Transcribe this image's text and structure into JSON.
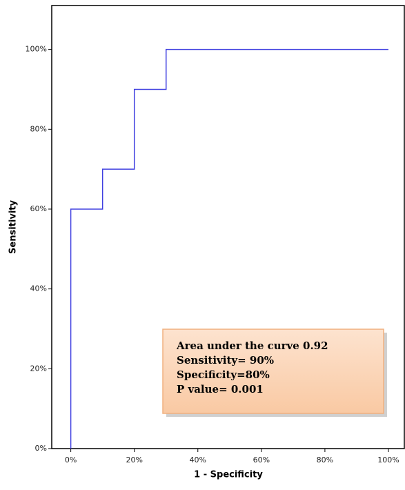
{
  "chart_data": {
    "type": "line",
    "xlabel": "1 - Specificity",
    "ylabel": "Sensitivity",
    "x": [
      0,
      0,
      10,
      10,
      20,
      20,
      30,
      30,
      100
    ],
    "values": [
      0,
      60,
      60,
      70,
      70,
      90,
      90,
      100,
      100
    ],
    "color": "#4040e0",
    "xlim": [
      -6,
      105
    ],
    "ylim": [
      0,
      111
    ],
    "xticks": [
      {
        "value": 0,
        "label": "0%"
      },
      {
        "value": 20,
        "label": "20%"
      },
      {
        "value": 40,
        "label": "40%"
      },
      {
        "value": 60,
        "label": "60%"
      },
      {
        "value": 80,
        "label": "80%"
      },
      {
        "value": 100,
        "label": "100%"
      }
    ],
    "yticks": [
      {
        "value": 0,
        "label": "0%"
      },
      {
        "value": 20,
        "label": "20%"
      },
      {
        "value": 40,
        "label": "40%"
      },
      {
        "value": 60,
        "label": "60%"
      },
      {
        "value": 80,
        "label": "80%"
      },
      {
        "value": 100,
        "label": "100%"
      }
    ],
    "annotations": [
      "Area under the curve 0.92",
      "Sensitivity= 90%",
      "Specificity=80%",
      "P value= 0.001"
    ]
  }
}
